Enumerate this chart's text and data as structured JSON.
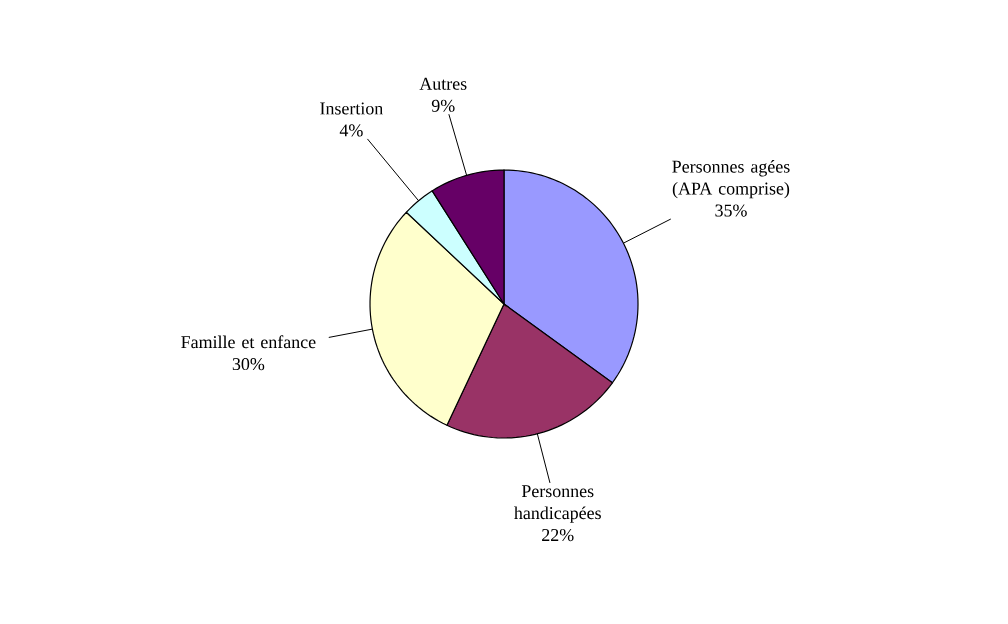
{
  "chart_data": {
    "type": "pie",
    "categories": [
      "Personnes agées (APA comprise)",
      "Personnes handicapées",
      "Famille et enfance",
      "Insertion",
      "Autres"
    ],
    "values": [
      35,
      22,
      30,
      4,
      9
    ],
    "value_labels": [
      "35%",
      "22%",
      "30%",
      "4%",
      "9%"
    ],
    "colors": [
      "#9999ff",
      "#993366",
      "#ffffcc",
      "#ccffff",
      "#660066"
    ]
  }
}
